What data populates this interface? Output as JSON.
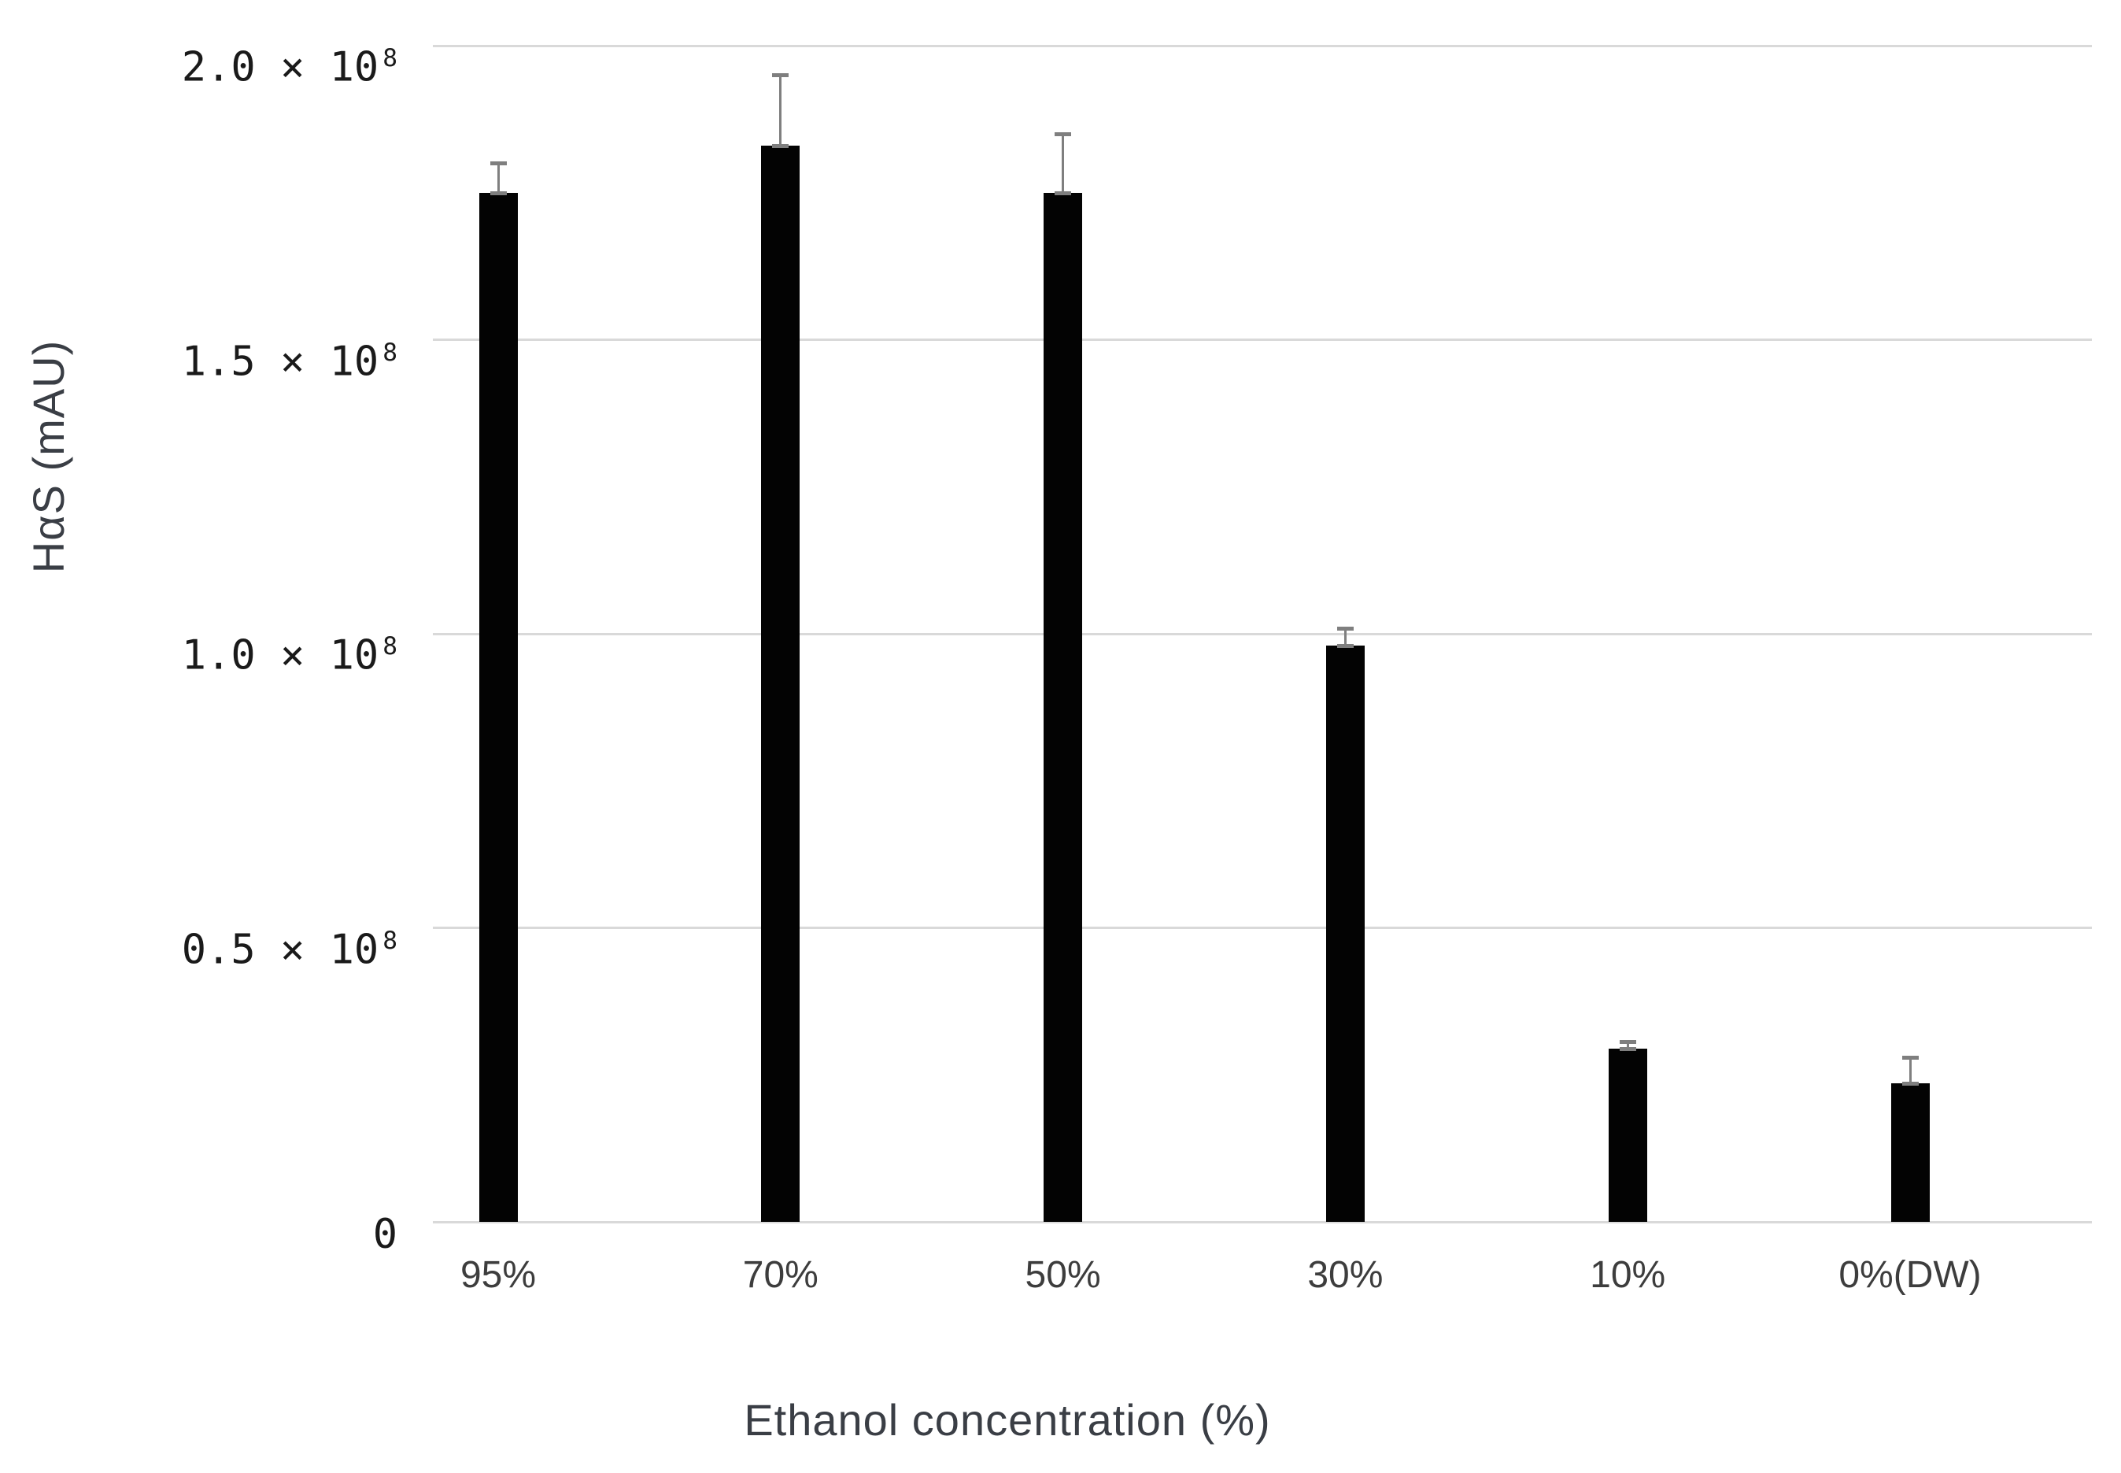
{
  "figure": {
    "background_color": "#ffffff"
  },
  "chart_data": {
    "type": "bar",
    "title": "",
    "xlabel": "Ethanol concentration (%)",
    "ylabel": "HαS (mAU)",
    "categories": [
      "95%",
      "70%",
      "50%",
      "30%",
      "10%",
      "0%(DW)"
    ],
    "values": [
      175000000,
      183000000,
      175000000,
      98000000,
      29500000,
      23500000
    ],
    "errors_plus": [
      5000000,
      12000000,
      10000000,
      3000000,
      1200000,
      4500000
    ],
    "ylim": [
      0,
      200000000
    ],
    "yticks": [
      {
        "v": 0,
        "base": "0",
        "exp": ""
      },
      {
        "v": 50000000,
        "base": "0.5 × 10",
        "exp": "8"
      },
      {
        "v": 100000000,
        "base": "1.0 × 10",
        "exp": "8"
      },
      {
        "v": 150000000,
        "base": "1.5 × 10",
        "exp": "8"
      },
      {
        "v": 200000000,
        "base": "2.0 × 10",
        "exp": "8"
      }
    ],
    "grid": "horizontal",
    "legend_position": "none",
    "bar_color": "#030303",
    "error_bar_color": "#7f7f7f",
    "gridline_color": "#d9d9d9",
    "y_tick_color": "#1a1a1a",
    "x_tick_color": "#3d3d3d",
    "axis_title_color": "#3a3e45"
  }
}
